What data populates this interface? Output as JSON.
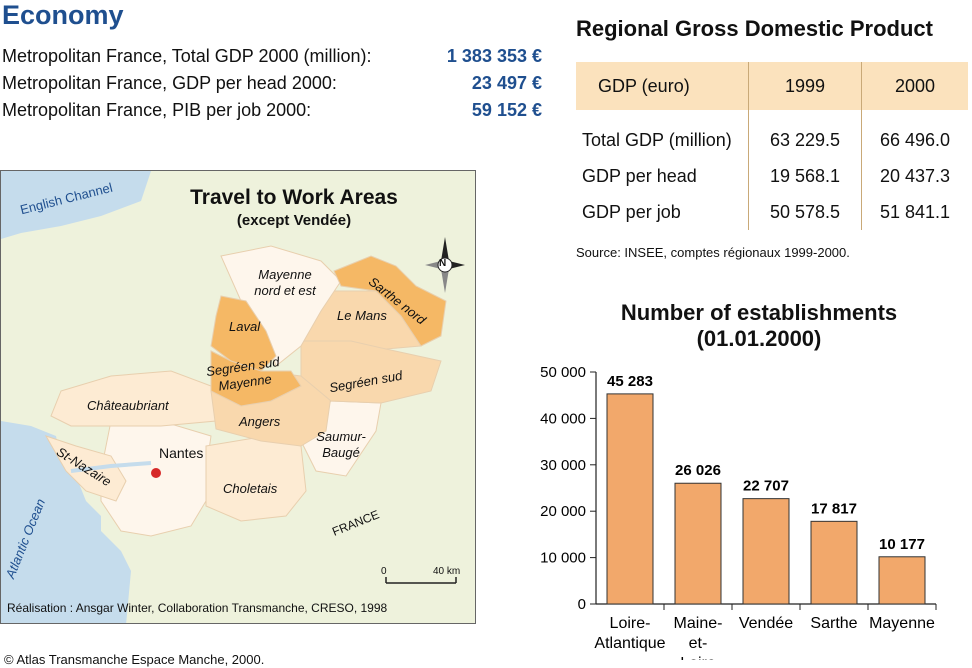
{
  "header": {
    "title": "Economy"
  },
  "stats": [
    {
      "label": "Metropolitan France, Total GDP 2000 (million):",
      "value": "1 383 353 €"
    },
    {
      "label": "Metropolitan France, GDP per head 2000:",
      "value": "23 497 €"
    },
    {
      "label": "Metropolitan France, PIB per job 2000:",
      "value": "59 152 €"
    }
  ],
  "gdp_table": {
    "title": "Regional Gross Domestic Product",
    "headers": [
      "GDP (euro)",
      "1999",
      "2000"
    ],
    "rows": [
      [
        "Total GDP (million)",
        "63 229.5",
        "66 496.0"
      ],
      [
        "GDP per head",
        "19 568.1",
        "20 437.3"
      ],
      [
        "GDP per job",
        "50 578.5",
        "51 841.1"
      ]
    ],
    "source": "Source: INSEE, comptes régionaux 1999-2000."
  },
  "map": {
    "title": "Travel to Work Areas",
    "subtitle": "(except Vendée)",
    "sea_labels": {
      "channel": "English Channel",
      "ocean": "Atlantic Ocean"
    },
    "country": "FRANCE",
    "compass": "N",
    "areas": {
      "mayenne_nord": "Mayenne nord et est",
      "sarthe_nord": "Sarthe nord",
      "laval": "Laval",
      "le_mans": "Le Mans",
      "segreen_mayenne": "Segréen sud Mayenne",
      "segreen_sud": "Segréen sud",
      "chateaubriant": "Châteaubriant",
      "angers": "Angers",
      "saumur": "Saumur-Baugé",
      "nantes": "Nantes",
      "st_nazaire": "St-Nazaire",
      "choletais": "Choletais"
    },
    "scale": {
      "zero": "0",
      "max": "40 km"
    },
    "credit": "Réalisation : Ansgar Winter, Collaboration Transmanche, CRESO, 1998",
    "colors": {
      "land": "#eef2dc",
      "sea": "#c5dcec",
      "dark": "#f5b865",
      "mid": "#f9d8ad",
      "light": "#fdebd3",
      "pale": "#fef6ec"
    }
  },
  "chart_data": {
    "type": "bar",
    "title": "Number of establishments (01.01.2000)",
    "categories": [
      "Loire-Atlantique",
      "Maine-et-Loire",
      "Vendée",
      "Sarthe",
      "Mayenne"
    ],
    "values": [
      45283,
      26026,
      22707,
      17817,
      10177
    ],
    "value_labels": [
      "45 283",
      "26 026",
      "22 707",
      "17 817",
      "10 177"
    ],
    "ylim": [
      0,
      50000
    ],
    "yticks": [
      0,
      10000,
      20000,
      30000,
      40000,
      50000
    ],
    "ytick_labels": [
      "0",
      "10 000",
      "20 000",
      "30 000",
      "40 000",
      "50 000"
    ],
    "bar_color": "#f2a86b",
    "grid": false,
    "xlabel": "",
    "ylabel": ""
  },
  "footer": {
    "copyright": "© Atlas Transmanche Espace Manche, 2000."
  }
}
